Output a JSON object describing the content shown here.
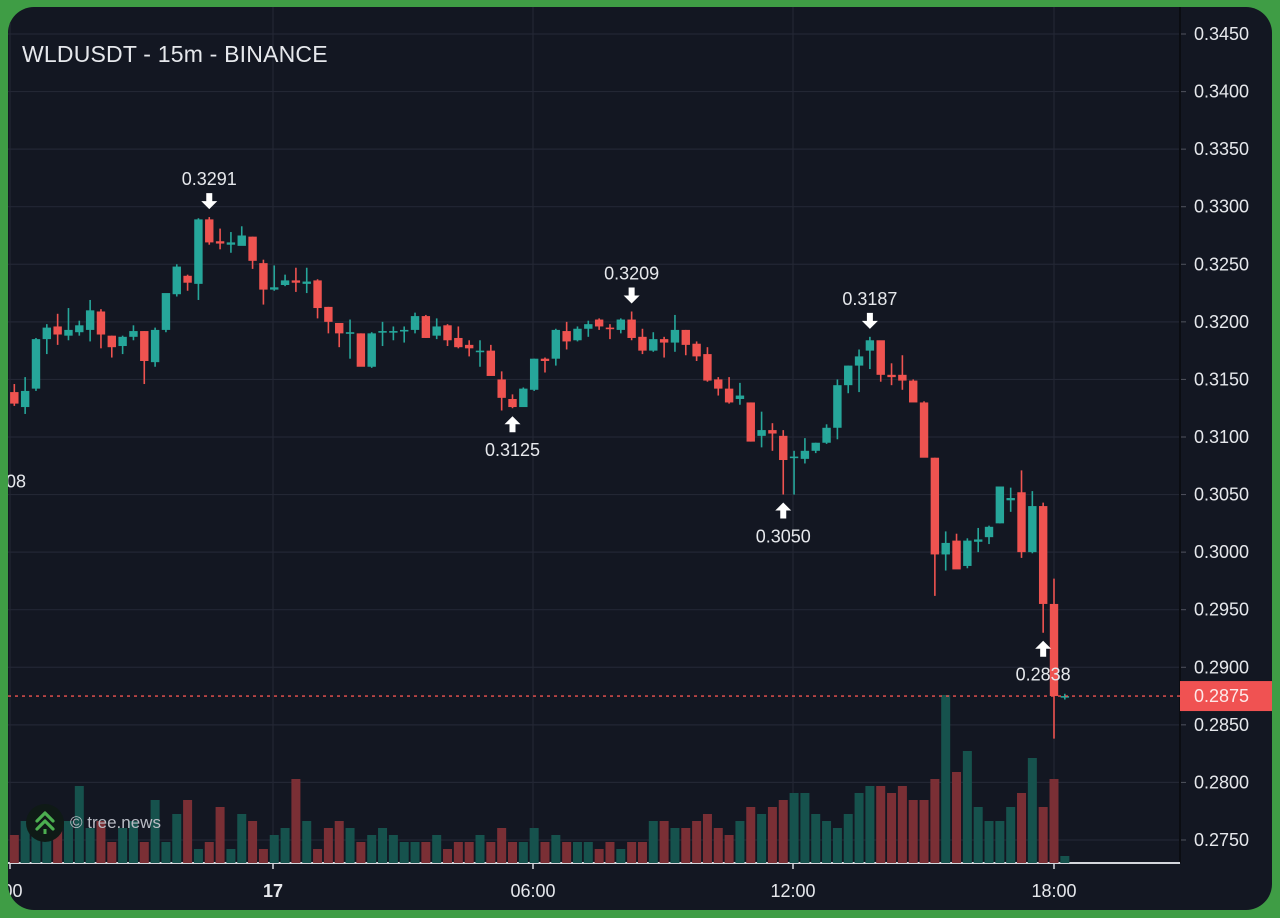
{
  "header": {
    "title": "WLDUSDT - 15m - BINANCE"
  },
  "watermark": {
    "text": "© tree.news",
    "icon": "tree-chevrons-icon"
  },
  "colors": {
    "background": "#131722",
    "frame": "#3f9d45",
    "up": "#26a69a",
    "down": "#ef5350",
    "volume_up": "#16524d",
    "volume_down": "#7a2f35",
    "grid": "#232734",
    "text": "#e6e8ec",
    "last_price_bg": "#f05252"
  },
  "price_axis": {
    "labels": [
      "0.3450",
      "0.3400",
      "0.3350",
      "0.3300",
      "0.3250",
      "0.3200",
      "0.3150",
      "0.3100",
      "0.3050",
      "0.3000",
      "0.2950",
      "0.2900",
      "0.2850",
      "0.2800",
      "0.2750"
    ],
    "last_price": "0.2875"
  },
  "time_axis": {
    "labels": [
      ":00",
      "17",
      "06:00",
      "12:00",
      "18:00"
    ]
  },
  "left_cut_label": "08",
  "annotations": [
    {
      "label": "0.3291",
      "type": "high",
      "arrow": "down"
    },
    {
      "label": "0.3125",
      "type": "low",
      "arrow": "up"
    },
    {
      "label": "0.3209",
      "type": "high",
      "arrow": "down"
    },
    {
      "label": "0.3050",
      "type": "low",
      "arrow": "up"
    },
    {
      "label": "0.3187",
      "type": "high",
      "arrow": "down"
    },
    {
      "label": "0.2838",
      "type": "low",
      "arrow": "up"
    }
  ],
  "chart_data": {
    "type": "candlestick",
    "title": "WLDUSDT - 15m - BINANCE",
    "xlabel": "",
    "ylabel": "",
    "ylim": [
      0.273,
      0.346
    ],
    "x_ticks": [
      ":00",
      "17",
      "06:00",
      "12:00",
      "18:00"
    ],
    "y_ticks": [
      0.345,
      0.34,
      0.335,
      0.33,
      0.325,
      0.32,
      0.315,
      0.31,
      0.305,
      0.3,
      0.295,
      0.29,
      0.285,
      0.28,
      0.275
    ],
    "grid": true,
    "last_price": 0.2875,
    "marked_extremes": [
      0.3291,
      0.3125,
      0.3209,
      0.305,
      0.3187,
      0.2838
    ],
    "candles": [
      [
        0.3123,
        0.314,
        0.3121,
        0.3138
      ],
      [
        0.3139,
        0.3146,
        0.3127,
        0.3129
      ],
      [
        0.3126,
        0.3152,
        0.312,
        0.314
      ],
      [
        0.3142,
        0.3186,
        0.314,
        0.3185
      ],
      [
        0.3185,
        0.3198,
        0.3172,
        0.3195
      ],
      [
        0.3196,
        0.3207,
        0.318,
        0.3189
      ],
      [
        0.3188,
        0.3212,
        0.3184,
        0.3193
      ],
      [
        0.3191,
        0.3201,
        0.3188,
        0.3197
      ],
      [
        0.3193,
        0.3219,
        0.3183,
        0.321
      ],
      [
        0.3209,
        0.3211,
        0.3177,
        0.3189
      ],
      [
        0.3188,
        0.3188,
        0.3169,
        0.3178
      ],
      [
        0.3179,
        0.3188,
        0.3172,
        0.3187
      ],
      [
        0.3187,
        0.3197,
        0.3184,
        0.3192
      ],
      [
        0.3192,
        0.3192,
        0.3146,
        0.3166
      ],
      [
        0.3165,
        0.3195,
        0.3161,
        0.3193
      ],
      [
        0.3193,
        0.3223,
        0.3191,
        0.3225
      ],
      [
        0.3224,
        0.325,
        0.3222,
        0.3248
      ],
      [
        0.324,
        0.3241,
        0.3227,
        0.3234
      ],
      [
        0.3233,
        0.329,
        0.3219,
        0.3289
      ],
      [
        0.3289,
        0.3291,
        0.3267,
        0.3269
      ],
      [
        0.327,
        0.3281,
        0.3263,
        0.3268
      ],
      [
        0.3267,
        0.3278,
        0.326,
        0.3269
      ],
      [
        0.3266,
        0.3283,
        0.327,
        0.3275
      ],
      [
        0.3274,
        0.3274,
        0.3246,
        0.3253
      ],
      [
        0.3251,
        0.3254,
        0.3215,
        0.3228
      ],
      [
        0.3228,
        0.3249,
        0.3227,
        0.323
      ],
      [
        0.3232,
        0.3241,
        0.3231,
        0.3236
      ],
      [
        0.3236,
        0.3247,
        0.3226,
        0.3234
      ],
      [
        0.3233,
        0.3247,
        0.3225,
        0.3235
      ],
      [
        0.3236,
        0.3237,
        0.3203,
        0.3212
      ],
      [
        0.3213,
        0.3213,
        0.319,
        0.32
      ],
      [
        0.3199,
        0.3198,
        0.3178,
        0.319
      ],
      [
        0.319,
        0.3202,
        0.3168,
        0.3191
      ],
      [
        0.319,
        0.319,
        0.3162,
        0.3161
      ],
      [
        0.3161,
        0.3191,
        0.316,
        0.319
      ],
      [
        0.3191,
        0.32,
        0.3179,
        0.3192
      ],
      [
        0.3192,
        0.3196,
        0.3184,
        0.3192
      ],
      [
        0.3192,
        0.3196,
        0.3182,
        0.3193
      ],
      [
        0.3193,
        0.3208,
        0.319,
        0.3205
      ],
      [
        0.3205,
        0.3206,
        0.3186,
        0.3186
      ],
      [
        0.3188,
        0.3203,
        0.3185,
        0.3196
      ],
      [
        0.3197,
        0.3198,
        0.3179,
        0.3184
      ],
      [
        0.3186,
        0.3196,
        0.3177,
        0.3178
      ],
      [
        0.318,
        0.3184,
        0.317,
        0.3177
      ],
      [
        0.3175,
        0.3184,
        0.3161,
        0.3175
      ],
      [
        0.3175,
        0.318,
        0.3157,
        0.3153
      ],
      [
        0.315,
        0.3157,
        0.3123,
        0.3134
      ],
      [
        0.3133,
        0.3137,
        0.3125,
        0.3126
      ],
      [
        0.3126,
        0.3143,
        0.3127,
        0.3142
      ],
      [
        0.3141,
        0.3168,
        0.314,
        0.3168
      ],
      [
        0.3168,
        0.3169,
        0.3156,
        0.3166
      ],
      [
        0.3168,
        0.3194,
        0.3162,
        0.3193
      ],
      [
        0.3192,
        0.32,
        0.3176,
        0.3183
      ],
      [
        0.3184,
        0.3196,
        0.3183,
        0.3194
      ],
      [
        0.3194,
        0.3201,
        0.3187,
        0.3198
      ],
      [
        0.3202,
        0.3203,
        0.3193,
        0.3196
      ],
      [
        0.3195,
        0.3198,
        0.3185,
        0.3194
      ],
      [
        0.3193,
        0.3203,
        0.319,
        0.3202
      ],
      [
        0.3202,
        0.3209,
        0.3184,
        0.3186
      ],
      [
        0.3187,
        0.3194,
        0.3172,
        0.3175
      ],
      [
        0.3175,
        0.3191,
        0.3174,
        0.3185
      ],
      [
        0.3185,
        0.3187,
        0.3169,
        0.3182
      ],
      [
        0.3182,
        0.3206,
        0.3174,
        0.3193
      ],
      [
        0.3193,
        0.3193,
        0.3171,
        0.318
      ],
      [
        0.3181,
        0.3183,
        0.3166,
        0.317
      ],
      [
        0.3172,
        0.3178,
        0.3148,
        0.3149
      ],
      [
        0.315,
        0.3152,
        0.3136,
        0.3142
      ],
      [
        0.3142,
        0.3152,
        0.3129,
        0.313
      ],
      [
        0.3133,
        0.3147,
        0.3128,
        0.3136
      ],
      [
        0.313,
        0.313,
        0.3096,
        0.3096
      ],
      [
        0.3101,
        0.3122,
        0.3091,
        0.3106
      ],
      [
        0.3106,
        0.3112,
        0.3088,
        0.3103
      ],
      [
        0.3101,
        0.3106,
        0.305,
        0.308
      ],
      [
        0.3082,
        0.3088,
        0.305,
        0.3083
      ],
      [
        0.3081,
        0.3099,
        0.3077,
        0.3088
      ],
      [
        0.3088,
        0.3095,
        0.3086,
        0.3095
      ],
      [
        0.3095,
        0.3111,
        0.3094,
        0.3108
      ],
      [
        0.3108,
        0.315,
        0.3098,
        0.3145
      ],
      [
        0.3145,
        0.3162,
        0.3138,
        0.3162
      ],
      [
        0.3162,
        0.3176,
        0.3139,
        0.317
      ],
      [
        0.3175,
        0.3187,
        0.3159,
        0.3184
      ],
      [
        0.3184,
        0.3183,
        0.3148,
        0.3154
      ],
      [
        0.3154,
        0.3164,
        0.3145,
        0.3152
      ],
      [
        0.3154,
        0.3171,
        0.3141,
        0.3149
      ],
      [
        0.3149,
        0.315,
        0.3136,
        0.313
      ],
      [
        0.313,
        0.3131,
        0.3085,
        0.3082
      ],
      [
        0.3082,
        0.3082,
        0.2962,
        0.2998
      ],
      [
        0.2998,
        0.3018,
        0.2984,
        0.3008
      ],
      [
        0.301,
        0.3016,
        0.2986,
        0.2985
      ],
      [
        0.2988,
        0.3012,
        0.2986,
        0.301
      ],
      [
        0.3009,
        0.3021,
        0.3,
        0.3011
      ],
      [
        0.3013,
        0.3023,
        0.3007,
        0.3022
      ],
      [
        0.3025,
        0.3056,
        0.3025,
        0.3057
      ],
      [
        0.3045,
        0.3056,
        0.3035,
        0.3047
      ],
      [
        0.3052,
        0.3071,
        0.2995,
        0.3
      ],
      [
        0.3,
        0.3053,
        0.2999,
        0.304
      ],
      [
        0.304,
        0.3043,
        0.293,
        0.2955
      ],
      [
        0.2955,
        0.2977,
        0.2838,
        0.2875
      ],
      [
        0.2875,
        0.2877,
        0.2872,
        0.2875
      ]
    ],
    "volumes": [
      2,
      4,
      6,
      5,
      4,
      5,
      6,
      11,
      5,
      6,
      3,
      5,
      6,
      3,
      9,
      3,
      7,
      9,
      2,
      3,
      8,
      2,
      7,
      6,
      2,
      4,
      5,
      12,
      6,
      2,
      5,
      6,
      5,
      3,
      4,
      5,
      4,
      3,
      3,
      3,
      4,
      2,
      3,
      3,
      4,
      3,
      5,
      3,
      3,
      5,
      3,
      4,
      3,
      3,
      3,
      2,
      3,
      2,
      3,
      3,
      6,
      6,
      5,
      5,
      6,
      7,
      5,
      4,
      6,
      8,
      7,
      8,
      9,
      10,
      10,
      7,
      6,
      5,
      7,
      10,
      11,
      11,
      10,
      11,
      9,
      9,
      12,
      24,
      13,
      16,
      8,
      6,
      6,
      8,
      10,
      15,
      8,
      12,
      1
    ]
  }
}
